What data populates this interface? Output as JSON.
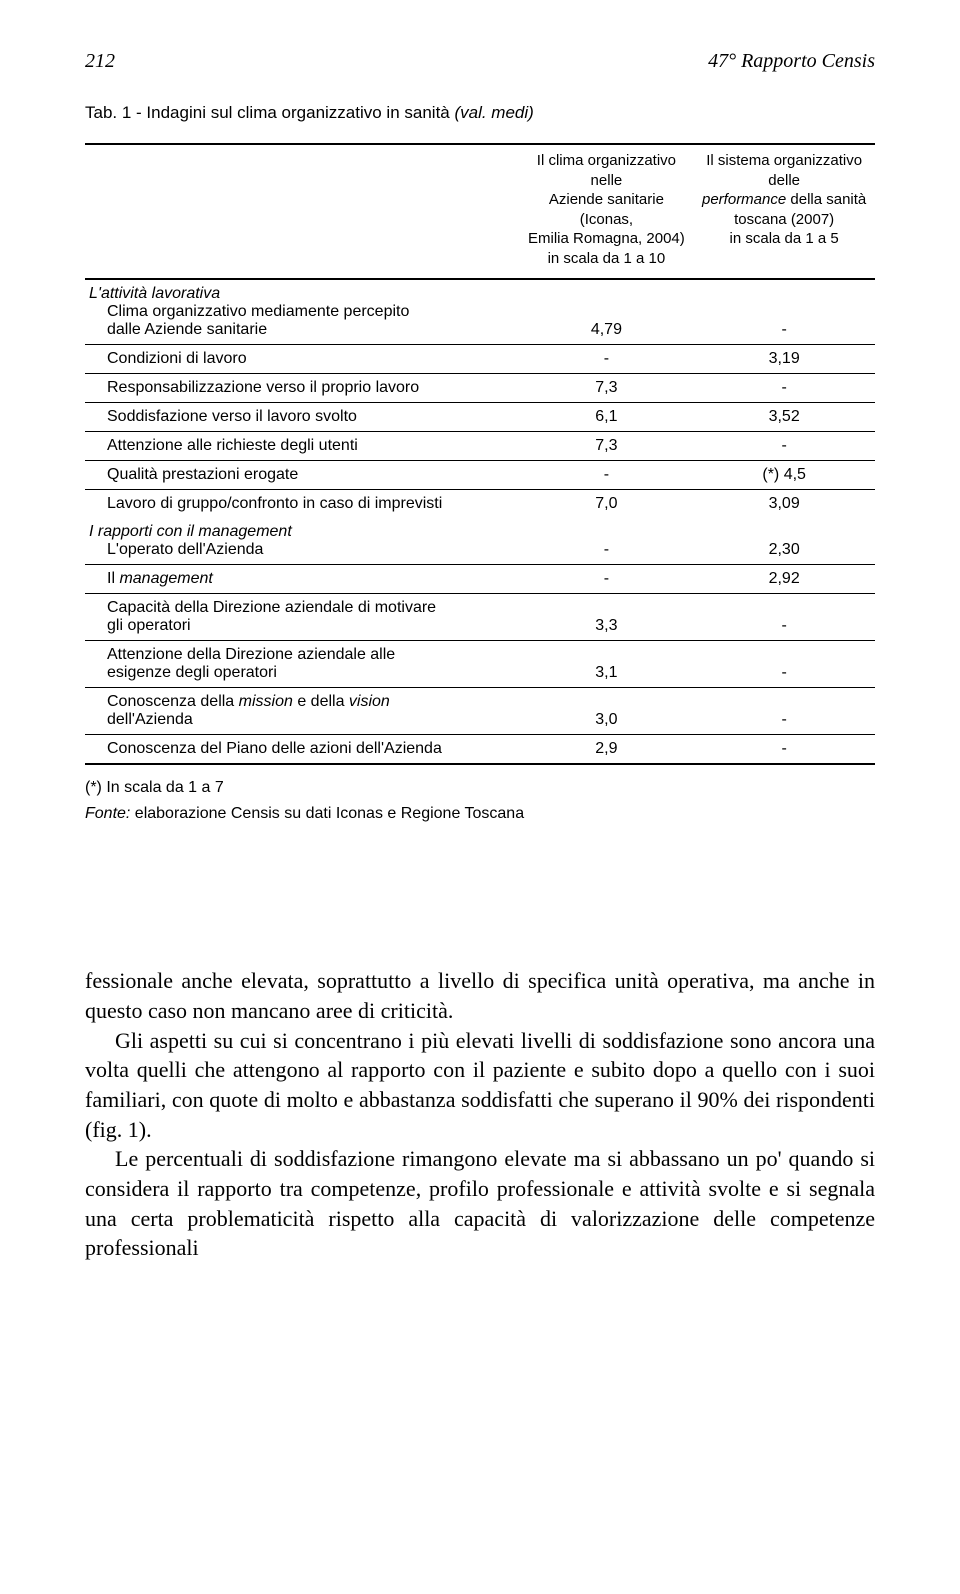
{
  "header": {
    "page_number": "212",
    "running_title": "47° Rapporto Censis"
  },
  "table": {
    "caption_prefix": "Tab. 1 - Indagini sul clima organizzativo in sanità ",
    "caption_suffix": "(val. medi)",
    "columns": {
      "c1_lines": [
        "Il clima organizzativo nelle",
        "Aziende sanitarie (Iconas,",
        "Emilia Romagna, 2004)",
        "in scala da 1 a 10"
      ],
      "c2_lines": [
        "Il sistema organizzativo delle",
        "performance",
        " della sanità",
        "toscana (2007)",
        "in scala da 1 a 5"
      ]
    },
    "sections": [
      {
        "title": "L'attività lavorativa",
        "rows": [
          {
            "label_lines": [
              "Clima organizzativo mediamente percepito",
              "dalle Aziende sanitarie"
            ],
            "v1": "4,79",
            "v2": "-"
          },
          {
            "label_lines": [
              "Condizioni di lavoro"
            ],
            "v1": "-",
            "v2": "3,19"
          },
          {
            "label_lines": [
              "Responsabilizzazione verso il proprio lavoro"
            ],
            "v1": "7,3",
            "v2": "-"
          },
          {
            "label_lines": [
              "Soddisfazione verso il lavoro svolto"
            ],
            "v1": "6,1",
            "v2": "3,52"
          },
          {
            "label_lines": [
              "Attenzione alle richieste degli utenti"
            ],
            "v1": "7,3",
            "v2": "-"
          },
          {
            "label_lines": [
              "Qualità prestazioni erogate"
            ],
            "v1": "-",
            "v2": "(*) 4,5"
          },
          {
            "label_lines": [
              "Lavoro di gruppo/confronto in caso di imprevisti"
            ],
            "v1": "7,0",
            "v2": "3,09"
          }
        ]
      },
      {
        "title": "I rapporti con il management",
        "rows": [
          {
            "label_lines": [
              "L'operato dell'Azienda"
            ],
            "v1": "-",
            "v2": "2,30"
          },
          {
            "label_html": "Il <span class=\"italic\">management</span>",
            "v1": "-",
            "v2": "2,92"
          },
          {
            "label_lines": [
              "Capacità della Direzione aziendale di motivare",
              "gli operatori"
            ],
            "v1": "3,3",
            "v2": "-"
          },
          {
            "label_lines": [
              "Attenzione della Direzione aziendale alle",
              "esigenze degli operatori"
            ],
            "v1": "3,1",
            "v2": "-"
          },
          {
            "label_html": "Conoscenza della <span class=\"italic\">mission</span> e della <span class=\"italic\">vision</span><br>dell'Azienda",
            "v1": "3,0",
            "v2": "-"
          },
          {
            "label_lines": [
              "Conoscenza del Piano delle azioni dell'Azienda"
            ],
            "v1": "2,9",
            "v2": "-"
          }
        ]
      }
    ],
    "footnote_line1": "(*) In scala da 1 a 7",
    "footnote_line2_prefix": "Fonte:",
    "footnote_line2_rest": " elaborazione Censis su dati Iconas e Regione Toscana"
  },
  "body": {
    "p1": "fessionale anche elevata, soprattutto a livello di specifica unità operativa, ma anche in questo caso non mancano aree di criticità.",
    "p2": "Gli aspetti su cui si concentrano i più elevati livelli di soddisfazione sono ancora una volta quelli che attengono al rapporto con il paziente e subito dopo a quello con i suoi familiari, con quote di molto e abbastanza soddisfatti che superano il 90% dei rispondenti (fig. 1).",
    "p3": "Le percentuali di soddisfazione rimangono elevate ma si abbassano un po' quando si considera il rapporto tra competenze, profilo professionale e attività svolte e si segnala una certa problematicità rispetto alla capacità di valorizzazione delle competenze professionali"
  },
  "style": {
    "text_color": "#000000",
    "background": "#ffffff",
    "table_font_size": 16,
    "body_font_size": 22
  }
}
